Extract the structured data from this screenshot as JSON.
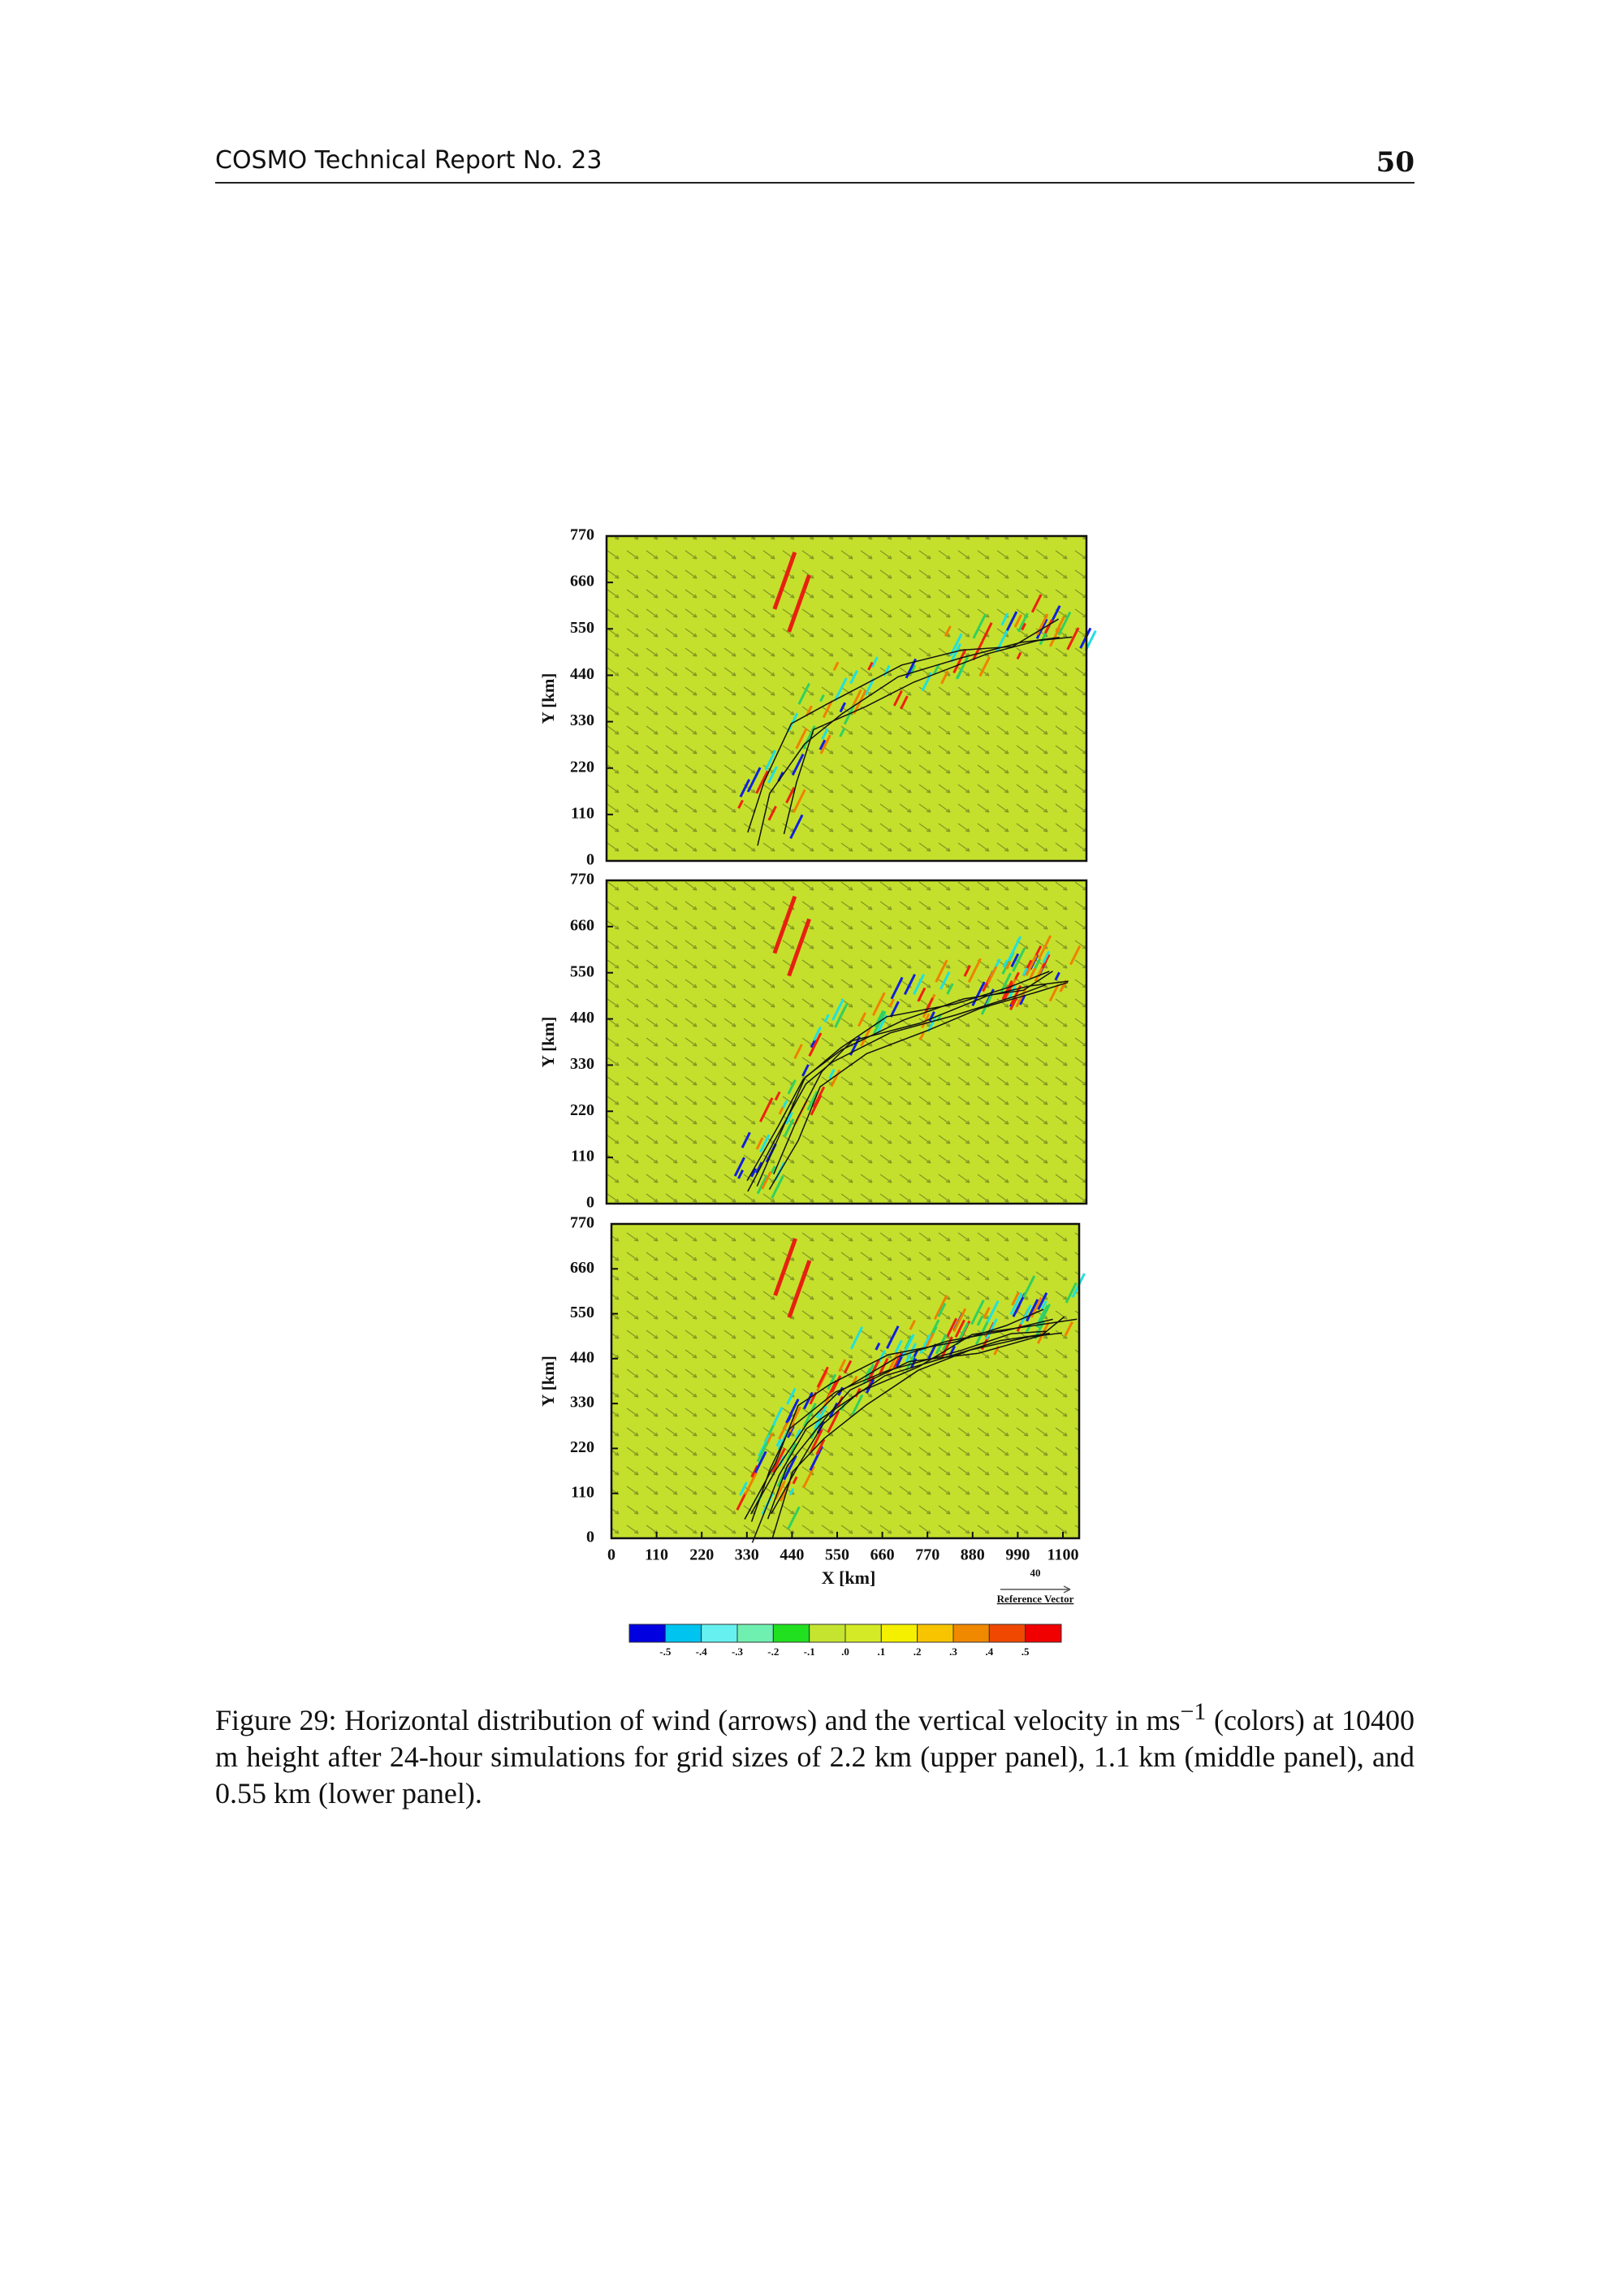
{
  "header": {
    "title": "COSMO Technical Report No. 23",
    "page": "50"
  },
  "figure": {
    "panels": [
      {
        "y_label": "Y [km]",
        "yticks": [
          "770",
          "660",
          "550",
          "440",
          "330",
          "220",
          "110",
          "0"
        ]
      },
      {
        "y_label": "Y [km]",
        "yticks": [
          "770",
          "660",
          "550",
          "440",
          "330",
          "220",
          "110",
          "0"
        ]
      },
      {
        "y_label": "Y [km]",
        "yticks": [
          "770",
          "660",
          "550",
          "440",
          "330",
          "220",
          "110",
          "0"
        ]
      }
    ],
    "xticks": [
      "0",
      "110",
      "220",
      "330",
      "440",
      "550",
      "660",
      "770",
      "880",
      "990",
      "1100"
    ],
    "x_label": "X [km]",
    "reference_vector": {
      "value": "40",
      "label": "Reference Vector"
    },
    "colorbar": {
      "labels": [
        "-.5",
        "-.4",
        "-.3",
        "-.2",
        "-.1",
        ".0",
        ".1",
        ".2",
        ".3",
        ".4",
        ".5"
      ],
      "colors": [
        "#0000e0",
        "#00c4f0",
        "#66f0f0",
        "#70f0b0",
        "#20e020",
        "#c4e430",
        "#d4ea26",
        "#f4f000",
        "#f8c400",
        "#f08800",
        "#f04800",
        "#f00000"
      ]
    },
    "caption": {
      "before": "Figure 29: Horizontal distribution of wind (arrows) and the vertical velocity in ms",
      "sup": "−1",
      "after": " (colors) at 10400 m height after 24-hour simulations for grid sizes of 2.2 km (upper panel), 1.1 km (middle panel), and 0.55 km (lower panel)."
    }
  }
}
